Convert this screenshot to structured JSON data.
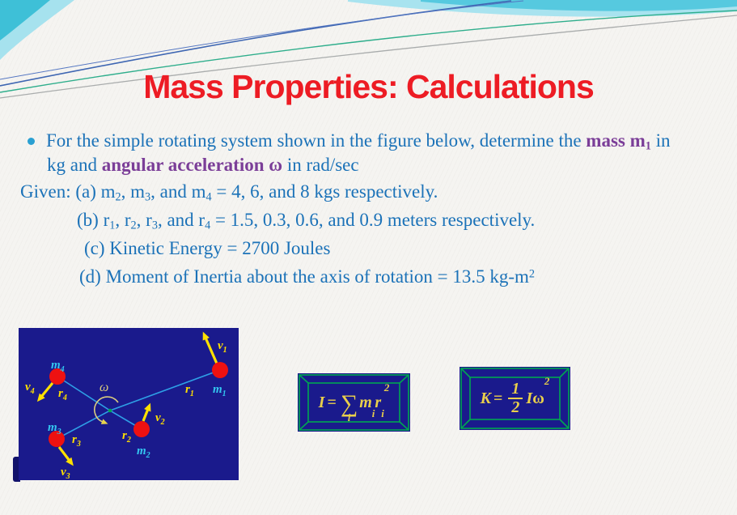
{
  "title": "Mass Properties: Calculations",
  "body": {
    "bullet_line1": [
      {
        "t": "For the simple rotating system shown in the figure below, determine the ",
        "s": "n"
      },
      {
        "t": "mass m",
        "s": "bp"
      },
      {
        "t": "1",
        "s": "bp sub"
      },
      {
        "t": " in",
        "s": "n"
      }
    ],
    "bullet_line2": [
      {
        "t": "kg and ",
        "s": "n"
      },
      {
        "t": "angular acceleration ω",
        "s": "bp"
      },
      {
        "t": " in rad/sec",
        "s": "n"
      }
    ],
    "given_a": [
      {
        "t": "Given: (a) m",
        "s": "n"
      },
      {
        "t": "2",
        "s": "sub"
      },
      {
        "t": ", m",
        "s": "n"
      },
      {
        "t": "3",
        "s": "sub"
      },
      {
        "t": ", and m",
        "s": "n"
      },
      {
        "t": "4",
        "s": "sub"
      },
      {
        "t": " = 4, 6, and 8 kgs respectively.",
        "s": "n"
      }
    ],
    "given_b": [
      {
        "t": "(b) r",
        "s": "n"
      },
      {
        "t": "1",
        "s": "sub"
      },
      {
        "t": ", r",
        "s": "n"
      },
      {
        "t": "2",
        "s": "sub"
      },
      {
        "t": ", r",
        "s": "n"
      },
      {
        "t": "3",
        "s": "sub"
      },
      {
        "t": ", and r",
        "s": "n"
      },
      {
        "t": "4",
        "s": "sub"
      },
      {
        "t": " = 1.5, 0.3, 0.6, and 0.9 meters respectively.",
        "s": "n"
      }
    ],
    "given_c": [
      {
        "t": "(c) Kinetic Energy = 2700 Joules",
        "s": "n"
      }
    ],
    "given_d": [
      {
        "t": "(d) Moment of Inertia about the axis of rotation = 13.5 kg-m",
        "s": "n"
      },
      {
        "t": "2",
        "s": "sup"
      }
    ]
  },
  "diagram": {
    "labels": {
      "m1": {
        "main": "m",
        "sub": "1"
      },
      "m2": {
        "main": "m",
        "sub": "2"
      },
      "m3": {
        "main": "m",
        "sub": "3"
      },
      "m4": {
        "main": "m",
        "sub": "4"
      },
      "r1": {
        "main": "r",
        "sub": "1"
      },
      "r2": {
        "main": "r",
        "sub": "2"
      },
      "r3": {
        "main": "r",
        "sub": "3"
      },
      "r4": {
        "main": "r",
        "sub": "4"
      },
      "v1": {
        "main": "v",
        "sub": "1"
      },
      "v2": {
        "main": "v",
        "sub": "2"
      },
      "v3": {
        "main": "v",
        "sub": "3"
      },
      "v4": {
        "main": "v",
        "sub": "4"
      },
      "omega": "ω"
    }
  },
  "formulas": {
    "inertia": {
      "lhs": "I",
      "eq": "=",
      "sigma": "∑",
      "index": "i",
      "m": "m",
      "m_sub": "i",
      "r": "r",
      "r_sub": "i",
      "exp": "2"
    },
    "kinetic": {
      "lhs": "K",
      "eq": "=",
      "num": "1",
      "den": "2",
      "inertia_sym": "I",
      "omega": "ω",
      "exp": "2"
    }
  },
  "colors": {
    "title_red": "#ED1C24",
    "body_blue": "#1B72B8",
    "emphasis_purple": "#7B3E98",
    "diagram_navy": "#1A1A8C",
    "frame_green": "#00A651",
    "formula_gold": "#E9CF4B",
    "mass_dot_red": "#EE1111",
    "radius_line_cyan": "#2E9FE6",
    "mass_label_cyan": "#33C6F0",
    "vector_yellow": "#FFE000",
    "decoration_cyan": "#56C9DF"
  }
}
